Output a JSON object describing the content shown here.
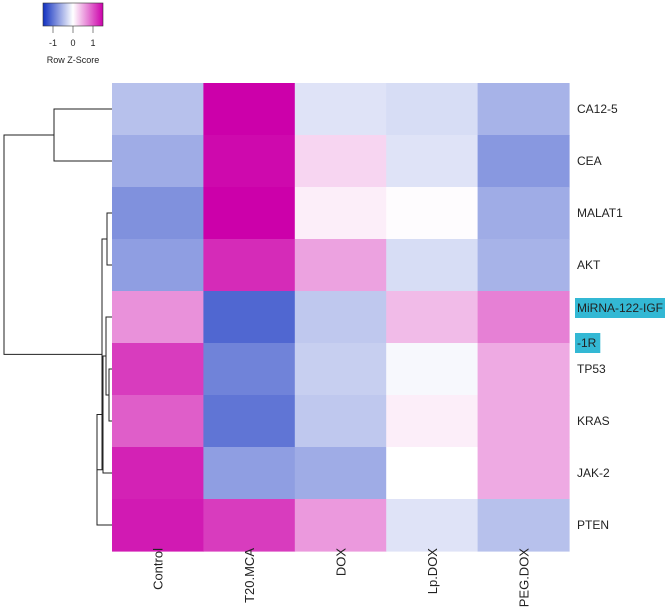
{
  "chart_data": {
    "type": "heatmap",
    "title": "",
    "rows": [
      "CA12-5",
      "CEA",
      "MALAT1",
      "AKT",
      "MiRNA-122-IGF-1R",
      "TP53",
      "KRAS",
      "JAK-2",
      "PTEN"
    ],
    "row_label_lines": [
      [
        "CA12-5"
      ],
      [
        "CEA"
      ],
      [
        "MALAT1"
      ],
      [
        "AKT"
      ],
      [
        "MiRNA-122-IGF",
        "-1R"
      ],
      [
        "TP53"
      ],
      [
        "KRAS"
      ],
      [
        "JAK-2"
      ],
      [
        "PTEN"
      ]
    ],
    "highlighted_rows": [
      "MiRNA-122-IGF-1R"
    ],
    "columns": [
      "Control",
      "T20.MCA",
      "DOX",
      "Lp.DOX",
      "PEG.DOX"
    ],
    "column_labels_visible": [
      "Control",
      "T20.MCA",
      "DOX",
      "Lp.DOX",
      "PEG.DOX"
    ],
    "values": [
      [
        -0.45,
        1.55,
        -0.2,
        -0.25,
        -0.55
      ],
      [
        -0.6,
        1.45,
        0.25,
        -0.2,
        -0.75
      ],
      [
        -0.8,
        1.5,
        0.1,
        0.02,
        -0.6
      ],
      [
        -0.7,
        1.25,
        0.55,
        -0.25,
        -0.55
      ],
      [
        0.65,
        -1.1,
        -0.4,
        0.4,
        0.75
      ],
      [
        1.15,
        -0.9,
        -0.35,
        -0.05,
        0.5
      ],
      [
        0.95,
        -1.0,
        -0.4,
        0.1,
        0.5
      ],
      [
        1.3,
        -0.7,
        -0.6,
        0.0,
        0.5
      ],
      [
        1.35,
        1.15,
        0.6,
        -0.2,
        -0.45
      ]
    ],
    "color_scale": {
      "min": -1.5,
      "mid": 0,
      "max": 1.5,
      "low": "#1030c0",
      "mid_color": "#ffffff",
      "high": "#cc00aa"
    },
    "legend": {
      "title": "Row Z-Score",
      "ticks": [
        "-1",
        "0",
        "1"
      ],
      "tick_values": [
        -1,
        0,
        1
      ],
      "placement": "top-left"
    },
    "dendrogram": "rows",
    "highlight_color": "#33b8d4"
  }
}
